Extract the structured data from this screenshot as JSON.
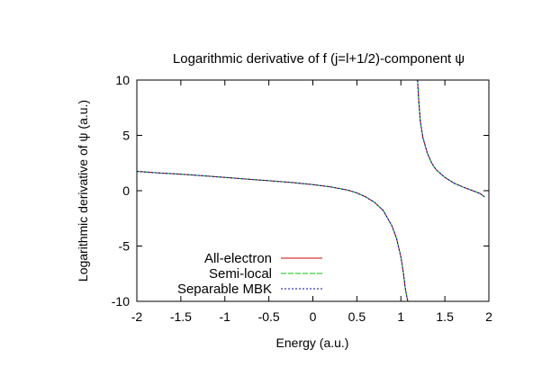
{
  "chart_data": {
    "type": "line",
    "title": "Logarithmic derivative of f (j=l+1/2)-component ψ",
    "xlabel": "Energy (a.u.)",
    "ylabel": "Logarithmic derivative of ψ (a.u.)",
    "xlim": [
      -2,
      2
    ],
    "ylim": [
      -10,
      10
    ],
    "x_ticks": [
      -2,
      -1.5,
      -1,
      -0.5,
      0,
      0.5,
      1,
      1.5,
      2
    ],
    "y_ticks": [
      -10,
      -5,
      0,
      5,
      10
    ],
    "x_tick_labels": [
      "-2",
      "-1.5",
      "-1",
      "-0.5",
      "0",
      "0.5",
      "1",
      "1.5",
      "2"
    ],
    "y_tick_labels": [
      "-10",
      "-5",
      "0",
      "5",
      "10"
    ],
    "grid": false,
    "legend_position": "bottom-left",
    "series": [
      {
        "name": "All-electron",
        "color": "#cc0000",
        "style": "solid",
        "segments": [
          {
            "x": [
              -2.0,
              -1.75,
              -1.5,
              -1.25,
              -1.0,
              -0.75,
              -0.5,
              -0.25,
              0.0,
              0.2,
              0.4,
              0.5,
              0.6,
              0.7,
              0.8,
              0.9,
              0.95,
              1.0,
              1.03,
              1.05,
              1.07,
              1.08
            ],
            "y": [
              1.75,
              1.6,
              1.5,
              1.35,
              1.2,
              1.05,
              0.9,
              0.75,
              0.55,
              0.35,
              0.05,
              -0.2,
              -0.55,
              -1.05,
              -1.8,
              -3.2,
              -4.3,
              -6.0,
              -7.5,
              -8.8,
              -9.7,
              -10.0
            ]
          },
          {
            "x": [
              1.19,
              1.2,
              1.22,
              1.25,
              1.3,
              1.35,
              1.4,
              1.5,
              1.6,
              1.7,
              1.8,
              1.9,
              1.95
            ],
            "y": [
              10.0,
              8.5,
              6.3,
              4.8,
              3.4,
              2.5,
              1.9,
              1.2,
              0.7,
              0.35,
              0.05,
              -0.25,
              -0.55
            ]
          }
        ]
      },
      {
        "name": "Semi-local",
        "color": "#00cc00",
        "style": "dash",
        "segments": [
          {
            "x": [
              -2.0,
              -1.75,
              -1.5,
              -1.25,
              -1.0,
              -0.75,
              -0.5,
              -0.25,
              0.0,
              0.2,
              0.4,
              0.5,
              0.6,
              0.7,
              0.8,
              0.9,
              0.95,
              1.0,
              1.03,
              1.05,
              1.07,
              1.08
            ],
            "y": [
              1.75,
              1.6,
              1.5,
              1.35,
              1.2,
              1.05,
              0.9,
              0.75,
              0.55,
              0.35,
              0.05,
              -0.2,
              -0.55,
              -1.05,
              -1.8,
              -3.2,
              -4.3,
              -6.0,
              -7.5,
              -8.8,
              -9.7,
              -10.0
            ]
          },
          {
            "x": [
              1.19,
              1.2,
              1.22,
              1.25,
              1.3,
              1.35,
              1.4,
              1.5,
              1.6,
              1.7,
              1.8,
              1.9,
              1.95
            ],
            "y": [
              10.0,
              8.5,
              6.3,
              4.8,
              3.4,
              2.5,
              1.9,
              1.2,
              0.7,
              0.35,
              0.05,
              -0.25,
              -0.55
            ]
          }
        ]
      },
      {
        "name": "Separable MBK",
        "color": "#0000cc",
        "style": "dot",
        "segments": [
          {
            "x": [
              -2.0,
              -1.75,
              -1.5,
              -1.25,
              -1.0,
              -0.75,
              -0.5,
              -0.25,
              0.0,
              0.2,
              0.4,
              0.5,
              0.6,
              0.7,
              0.8,
              0.9,
              0.95,
              1.0,
              1.03,
              1.05,
              1.07,
              1.08
            ],
            "y": [
              1.75,
              1.6,
              1.5,
              1.35,
              1.2,
              1.05,
              0.9,
              0.75,
              0.55,
              0.35,
              0.05,
              -0.2,
              -0.55,
              -1.05,
              -1.8,
              -3.2,
              -4.3,
              -6.0,
              -7.5,
              -8.8,
              -9.7,
              -10.0
            ]
          },
          {
            "x": [
              1.19,
              1.2,
              1.22,
              1.25,
              1.3,
              1.35,
              1.4,
              1.5,
              1.6,
              1.7,
              1.8,
              1.9,
              1.95
            ],
            "y": [
              10.0,
              8.5,
              6.3,
              4.8,
              3.4,
              2.5,
              1.9,
              1.2,
              0.7,
              0.35,
              0.05,
              -0.25,
              -0.55
            ]
          }
        ]
      }
    ]
  }
}
